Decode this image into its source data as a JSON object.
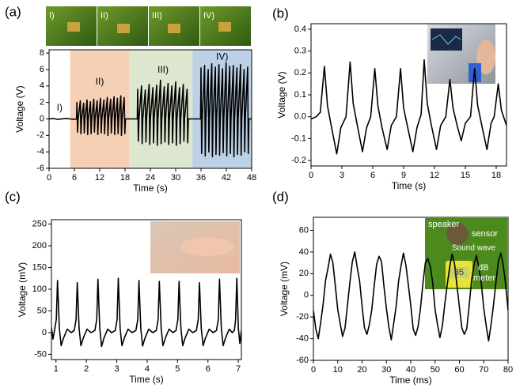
{
  "chart_data": [
    {
      "type": "line",
      "label": "(a)",
      "xlabel": "Time (s)",
      "ylabel": "Voltage (V)",
      "color": "#000000",
      "xlim": [
        0,
        48
      ],
      "ylim": [
        -6,
        8.4
      ],
      "xticks": [
        0,
        6,
        12,
        18,
        24,
        30,
        36,
        42,
        48
      ],
      "yticks": [
        -6,
        -4,
        -2,
        0,
        2,
        4,
        6,
        8
      ],
      "spans": [
        {
          "from": 5,
          "to": 19,
          "color": "#f6d0b4"
        },
        {
          "from": 19,
          "to": 34,
          "color": "#dde6cf"
        },
        {
          "from": 34,
          "to": 48,
          "color": "#bcd0e6"
        }
      ],
      "annotations": [
        "I)",
        "II)",
        "III)",
        "IV)"
      ],
      "photo_labels": [
        "I)",
        "II)",
        "III)",
        "IV)"
      ],
      "x": [
        0,
        1,
        2,
        3,
        4,
        5,
        6,
        6.5,
        6.6,
        6.75,
        6.9,
        7.4,
        7.55,
        7.7,
        8.2,
        8.35,
        8.5,
        9.0,
        9.15,
        9.3,
        9.8,
        9.95,
        10.1,
        10.6,
        10.75,
        10.9,
        11.4,
        11.55,
        11.7,
        12.2,
        12.35,
        12.5,
        13.0,
        13.15,
        13.3,
        13.8,
        13.95,
        14.1,
        14.6,
        14.75,
        14.9,
        15.4,
        15.55,
        15.7,
        16.2,
        16.35,
        16.5,
        17.0,
        17.15,
        17.3,
        17.8,
        17.95,
        18.1,
        19.5,
        20.9,
        21.0,
        21.15,
        21.3,
        21.9,
        22.05,
        22.2,
        22.8,
        22.95,
        23.1,
        23.7,
        23.85,
        24.0,
        24.6,
        24.75,
        24.9,
        25.5,
        25.65,
        25.8,
        26.4,
        26.55,
        26.7,
        27.3,
        27.45,
        27.6,
        28.2,
        28.35,
        28.5,
        29.1,
        29.25,
        29.4,
        30.0,
        30.15,
        30.3,
        30.9,
        31.05,
        31.2,
        31.8,
        31.95,
        32.1,
        32.7,
        32.85,
        33.0,
        34.5,
        35.9,
        36.0,
        36.15,
        36.3,
        36.85,
        37.0,
        37.15,
        37.7,
        37.85,
        38.0,
        38.55,
        38.7,
        38.85,
        39.4,
        39.55,
        39.7,
        40.25,
        40.4,
        40.55,
        41.1,
        41.25,
        41.4,
        41.95,
        42.1,
        42.25,
        42.8,
        42.95,
        43.1,
        43.65,
        43.8,
        43.95,
        44.5,
        44.65,
        44.8,
        45.35,
        45.5,
        45.65,
        46.2,
        46.35,
        46.5,
        47.05,
        47.2,
        47.35,
        48
      ],
      "values": [
        0,
        0.05,
        -0.05,
        0,
        0.05,
        0,
        -0.05,
        0,
        2.0,
        -1.6,
        0,
        2.2,
        -1.8,
        0,
        1.9,
        -1.7,
        0,
        2.3,
        -1.9,
        0,
        2.1,
        -1.8,
        0,
        2.4,
        -1.6,
        0,
        2.2,
        -1.9,
        0,
        2.5,
        -1.7,
        0,
        2.3,
        -1.8,
        0,
        2.6,
        -2.0,
        0,
        2.4,
        -1.7,
        0,
        2.7,
        -1.9,
        0,
        2.5,
        -1.8,
        0,
        2.8,
        -2.0,
        0,
        2.6,
        -1.8,
        0,
        0,
        0,
        3.6,
        -2.7,
        0,
        4.0,
        -3.0,
        0,
        3.5,
        -2.8,
        0,
        4.2,
        -3.1,
        0,
        3.8,
        -2.9,
        0,
        4.1,
        -3.2,
        0,
        4.7,
        -3.0,
        0,
        3.9,
        -2.8,
        0,
        4.3,
        -3.1,
        0,
        4.0,
        -2.9,
        0,
        4.5,
        -3.2,
        0,
        3.8,
        -3.0,
        0,
        4.2,
        -2.7,
        0,
        3.6,
        -2.9,
        0,
        0,
        0,
        6.2,
        -4.2,
        0,
        6.5,
        -4.5,
        0,
        6.0,
        -4.0,
        0,
        6.7,
        -4.6,
        0,
        6.3,
        -4.3,
        0,
        6.6,
        -4.4,
        0,
        6.1,
        -4.1,
        0,
        6.8,
        -4.5,
        0,
        6.4,
        -4.2,
        0,
        6.5,
        -4.6,
        0,
        6.2,
        -4.3,
        0,
        6.6,
        -4.4,
        0,
        6.0,
        -4.0,
        0,
        6.3,
        -4.2,
        0,
        0
      ]
    },
    {
      "type": "line",
      "label": "(b)",
      "xlabel": "Time (s)",
      "ylabel": "Voltage (V)",
      "color": "#000000",
      "xlim": [
        0,
        19
      ],
      "ylim": [
        -0.225,
        0.425
      ],
      "xticks": [
        0,
        3,
        6,
        9,
        12,
        15,
        18
      ],
      "yticks": [
        -0.2,
        -0.1,
        {
          "value": 0,
          "label": "0.0"
        },
        0.1,
        0.2,
        0.3,
        0.4
      ],
      "x": [
        0,
        0.5,
        0.9,
        1.3,
        1.6,
        2.0,
        2.5,
        2.9,
        3.4,
        3.8,
        4.1,
        4.5,
        5.0,
        5.4,
        5.8,
        6.2,
        6.5,
        6.9,
        7.4,
        7.8,
        8.3,
        8.7,
        9.0,
        9.4,
        9.9,
        10.3,
        10.7,
        11.0,
        11.3,
        11.7,
        12.2,
        12.6,
        13.1,
        13.5,
        13.8,
        14.2,
        14.6,
        15.0,
        15.5,
        15.9,
        16.2,
        16.6,
        17.1,
        17.5,
        17.8,
        18.2,
        18.5,
        19.0
      ],
      "values": [
        -0.01,
        0.0,
        0.02,
        0.23,
        0.05,
        -0.05,
        -0.17,
        -0.05,
        0.0,
        0.25,
        0.06,
        -0.04,
        -0.16,
        -0.05,
        0.0,
        0.22,
        0.05,
        -0.05,
        -0.15,
        -0.04,
        0.0,
        0.22,
        0.04,
        -0.05,
        -0.16,
        -0.05,
        0.01,
        0.26,
        0.06,
        -0.04,
        -0.15,
        -0.04,
        0.0,
        0.17,
        0.04,
        -0.04,
        -0.11,
        -0.03,
        0.0,
        0.22,
        0.05,
        -0.04,
        -0.15,
        -0.03,
        0.0,
        0.15,
        0.03,
        -0.04
      ]
    },
    {
      "type": "line",
      "label": "(c)",
      "xlabel": "Time (s)",
      "ylabel": "Voltage (mV)",
      "color": "#000000",
      "xlim": [
        0.85,
        7.1
      ],
      "ylim": [
        -62,
        260
      ],
      "xticks": [
        1,
        2,
        3,
        4,
        5,
        6,
        7
      ],
      "yticks": [
        -50,
        0,
        50,
        100,
        150,
        200,
        250
      ],
      "x": [
        0.85,
        0.9,
        0.95,
        1.01,
        1.05,
        1.11,
        1.17,
        1.25,
        1.37,
        1.5,
        1.6,
        1.66,
        1.7,
        1.76,
        1.82,
        1.9,
        2.02,
        2.15,
        2.28,
        2.34,
        2.38,
        2.44,
        2.5,
        2.58,
        2.7,
        2.83,
        2.95,
        3.01,
        3.05,
        3.11,
        3.17,
        3.25,
        3.37,
        3.5,
        3.63,
        3.69,
        3.73,
        3.79,
        3.85,
        3.93,
        4.05,
        4.18,
        4.3,
        4.36,
        4.4,
        4.46,
        4.52,
        4.6,
        4.72,
        4.85,
        4.95,
        5.01,
        5.05,
        5.11,
        5.17,
        5.25,
        5.37,
        5.5,
        5.62,
        5.68,
        5.72,
        5.78,
        5.84,
        5.92,
        6.04,
        6.17,
        6.28,
        6.34,
        6.38,
        6.44,
        6.5,
        6.58,
        6.7,
        6.8,
        6.87,
        6.91,
        6.95,
        7.0,
        7.05,
        7.1
      ],
      "values": [
        12,
        -15,
        5,
        30,
        120,
        10,
        -30,
        -12,
        8,
        0,
        5,
        30,
        115,
        10,
        -30,
        -12,
        8,
        0,
        5,
        30,
        123,
        10,
        -32,
        -12,
        8,
        0,
        5,
        30,
        125,
        10,
        -30,
        -12,
        8,
        0,
        5,
        30,
        120,
        10,
        -31,
        -12,
        8,
        0,
        5,
        30,
        118,
        10,
        -30,
        -12,
        8,
        0,
        5,
        30,
        118,
        10,
        -30,
        -12,
        8,
        0,
        5,
        30,
        115,
        10,
        -30,
        -12,
        8,
        0,
        5,
        30,
        123,
        10,
        -30,
        -12,
        8,
        0,
        5,
        30,
        125,
        10,
        -25,
        5
      ]
    },
    {
      "type": "line",
      "label": "(d)",
      "xlabel": "Time (ms)",
      "ylabel": "Voltage (mV)",
      "color": "#000000",
      "xlim": [
        0,
        80
      ],
      "ylim": [
        -60,
        72
      ],
      "xticks": [
        0,
        10,
        20,
        30,
        40,
        50,
        60,
        70,
        80
      ],
      "yticks": [
        -60,
        -40,
        -20,
        0,
        20,
        40,
        60
      ],
      "annotations": [
        "speaker",
        "sensor",
        "Sound wave",
        "dB",
        "meter",
        "85"
      ],
      "x": [
        0,
        1,
        2,
        3,
        4,
        5,
        6,
        7,
        8,
        9,
        10,
        11,
        12,
        13,
        14,
        15,
        16,
        17,
        18,
        19,
        20,
        21,
        22,
        23,
        24,
        25,
        26,
        27,
        28,
        29,
        30,
        31,
        32,
        33,
        34,
        35,
        36,
        37,
        38,
        39,
        40,
        41,
        42,
        43,
        44,
        45,
        46,
        47,
        48,
        49,
        50,
        51,
        52,
        53,
        54,
        55,
        56,
        57,
        58,
        59,
        60,
        61,
        62,
        63,
        64,
        65,
        66,
        67,
        68,
        69,
        70,
        71,
        72,
        73,
        74,
        75,
        76,
        77,
        78,
        79,
        80
      ],
      "values": [
        -14,
        -31,
        -40,
        -25,
        -8,
        14,
        25,
        38,
        30,
        9,
        -13,
        -26,
        -38,
        -30,
        -9,
        12,
        31,
        40,
        26,
        13,
        -10,
        -30,
        -36,
        -27,
        -13,
        9,
        29,
        36,
        31,
        8,
        -12,
        -29,
        -41,
        -26,
        -10,
        13,
        27,
        39,
        28,
        10,
        -9,
        -31,
        -37,
        -29,
        -12,
        11,
        30,
        34,
        27,
        12,
        -13,
        -27,
        -39,
        -28,
        -8,
        10,
        26,
        38,
        29,
        9,
        -11,
        -30,
        -36,
        -31,
        -10,
        14,
        28,
        37,
        25,
        11,
        -12,
        -28,
        -42,
        -27,
        -9,
        12,
        31,
        39,
        28,
        10,
        -14
      ]
    }
  ]
}
